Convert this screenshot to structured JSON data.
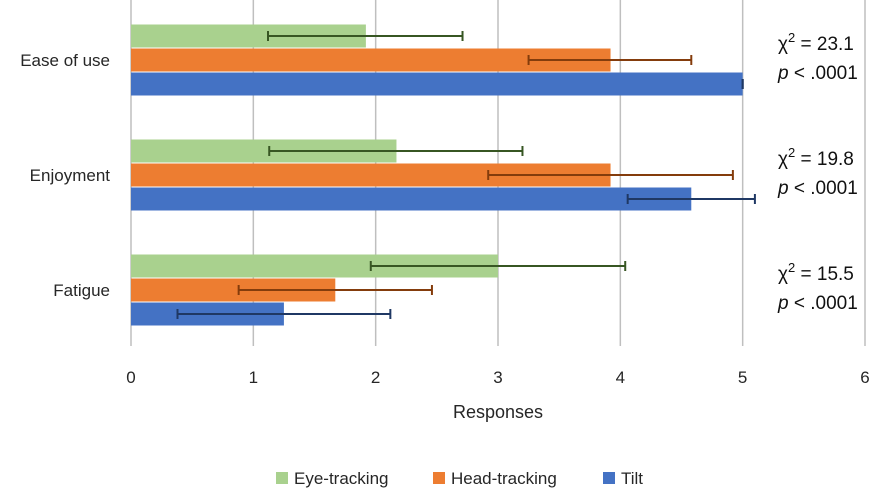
{
  "chart_data": {
    "type": "bar",
    "orientation": "horizontal",
    "categories": [
      "Ease of use",
      "Enjoyment",
      "Fatigue"
    ],
    "series": [
      {
        "name": "Eye-tracking",
        "color": "#a9d18e",
        "error_color": "#375623",
        "values": [
          1.92,
          2.17,
          3.0
        ],
        "error_low": [
          1.12,
          1.13,
          1.96
        ],
        "error_high": [
          2.71,
          3.2,
          4.04
        ]
      },
      {
        "name": "Head-tracking",
        "color": "#ed7d31",
        "error_color": "#843c0c",
        "values": [
          3.92,
          3.92,
          1.67
        ],
        "error_low": [
          3.25,
          2.92,
          0.88
        ],
        "error_high": [
          4.58,
          4.92,
          2.46
        ]
      },
      {
        "name": "Tilt",
        "color": "#4472c4",
        "error_color": "#1f3864",
        "values": [
          5.0,
          4.58,
          1.25
        ],
        "error_low": [
          5.0,
          4.06,
          0.38
        ],
        "error_high": [
          5.0,
          5.1,
          2.12
        ]
      }
    ],
    "xlabel": "Responses",
    "xlim": [
      0,
      6
    ],
    "xticks": [
      "0",
      "1",
      "2",
      "3",
      "4",
      "5",
      "6"
    ],
    "grid": "vertical",
    "legend_position": "bottom",
    "annotations": [
      {
        "chi_label": "χ",
        "chi_exp": "2",
        "chi_value": " = 23.1",
        "p_label": "p",
        "p_value": " < .0001"
      },
      {
        "chi_label": "χ",
        "chi_exp": "2",
        "chi_value": " = 19.8",
        "p_label": "p",
        "p_value": " < .0001"
      },
      {
        "chi_label": "χ",
        "chi_exp": "2",
        "chi_value": " = 15.5",
        "p_label": "p",
        "p_value": " < .0001"
      }
    ]
  }
}
